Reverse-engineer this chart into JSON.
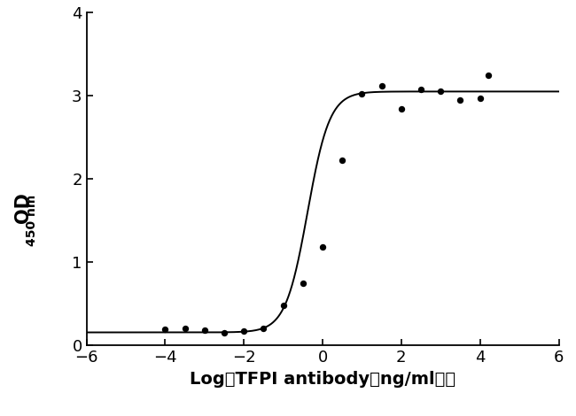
{
  "scatter_x": [
    -4,
    -3.5,
    -3,
    -2.5,
    -2,
    -1.5,
    -1,
    -0.5,
    0,
    0.5,
    1,
    1.5,
    2,
    2.5,
    3,
    3.5,
    4,
    4.2
  ],
  "scatter_y": [
    0.19,
    0.2,
    0.18,
    0.15,
    0.17,
    0.2,
    0.48,
    0.75,
    1.18,
    2.22,
    3.02,
    3.12,
    2.84,
    3.08,
    3.05,
    2.95,
    2.97,
    3.25
  ],
  "sigmoid_params": [
    0.155,
    3.05,
    -0.38,
    1.55
  ],
  "xlim": [
    -6,
    6
  ],
  "ylim": [
    0,
    4
  ],
  "xticks": [
    -6,
    -4,
    -2,
    0,
    2,
    4,
    6
  ],
  "yticks": [
    0,
    1,
    2,
    3,
    4
  ],
  "xlabel_parts": [
    "Log ",
    "(",
    "TFPI antibody ",
    "(",
    "ng/ml",
    ")",
    " )"
  ],
  "background_color": "#ffffff",
  "line_color": "#000000",
  "dot_color": "#000000",
  "dot_size": 28,
  "line_width": 1.4,
  "font_size_label": 14,
  "font_size_tick": 13,
  "font_weight": "bold"
}
